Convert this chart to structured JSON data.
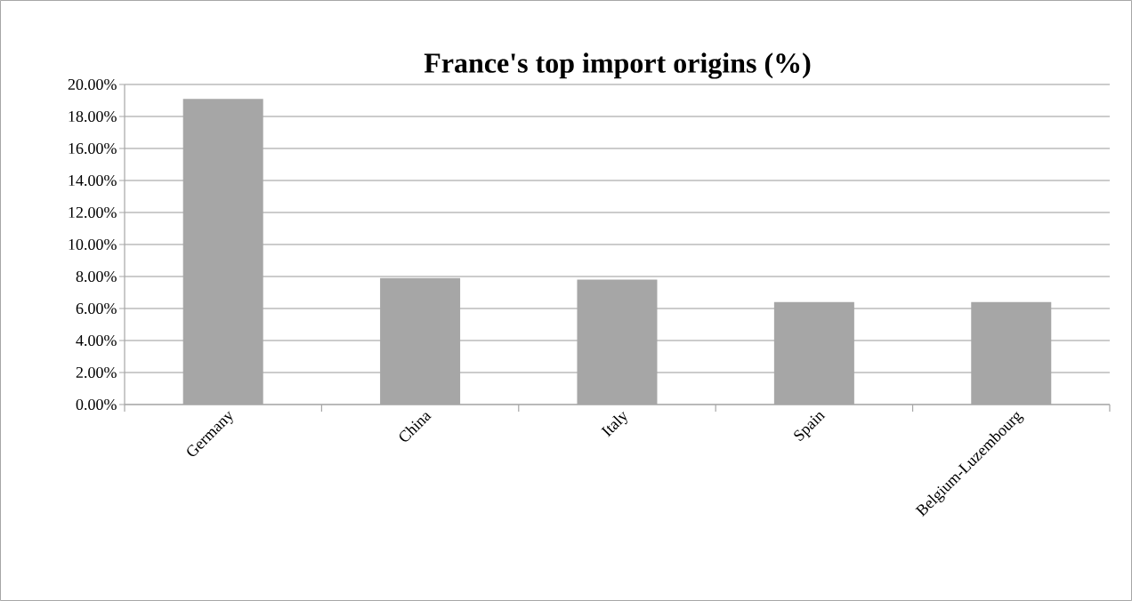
{
  "chart_data": {
    "type": "bar",
    "title": "France's top import origins (%)",
    "categories": [
      "Germany",
      "China",
      "Italy",
      "Spain",
      "Belgium-Luzembourg"
    ],
    "values": [
      19.1,
      7.9,
      7.8,
      6.4,
      6.4
    ],
    "color": "#a6a6a6",
    "ylim": [
      0,
      20
    ],
    "yticks": [
      {
        "value": 0,
        "label": "0.00%"
      },
      {
        "value": 2,
        "label": "2.00%"
      },
      {
        "value": 4,
        "label": "4.00%"
      },
      {
        "value": 6,
        "label": "6.00%"
      },
      {
        "value": 8,
        "label": "8.00%"
      },
      {
        "value": 10,
        "label": "10.00%"
      },
      {
        "value": 12,
        "label": "12.00%"
      },
      {
        "value": 14,
        "label": "14.00%"
      },
      {
        "value": 16,
        "label": "16.00%"
      },
      {
        "value": 18,
        "label": "18.00%"
      },
      {
        "value": 20,
        "label": "20.00%"
      }
    ],
    "grid": "y"
  }
}
